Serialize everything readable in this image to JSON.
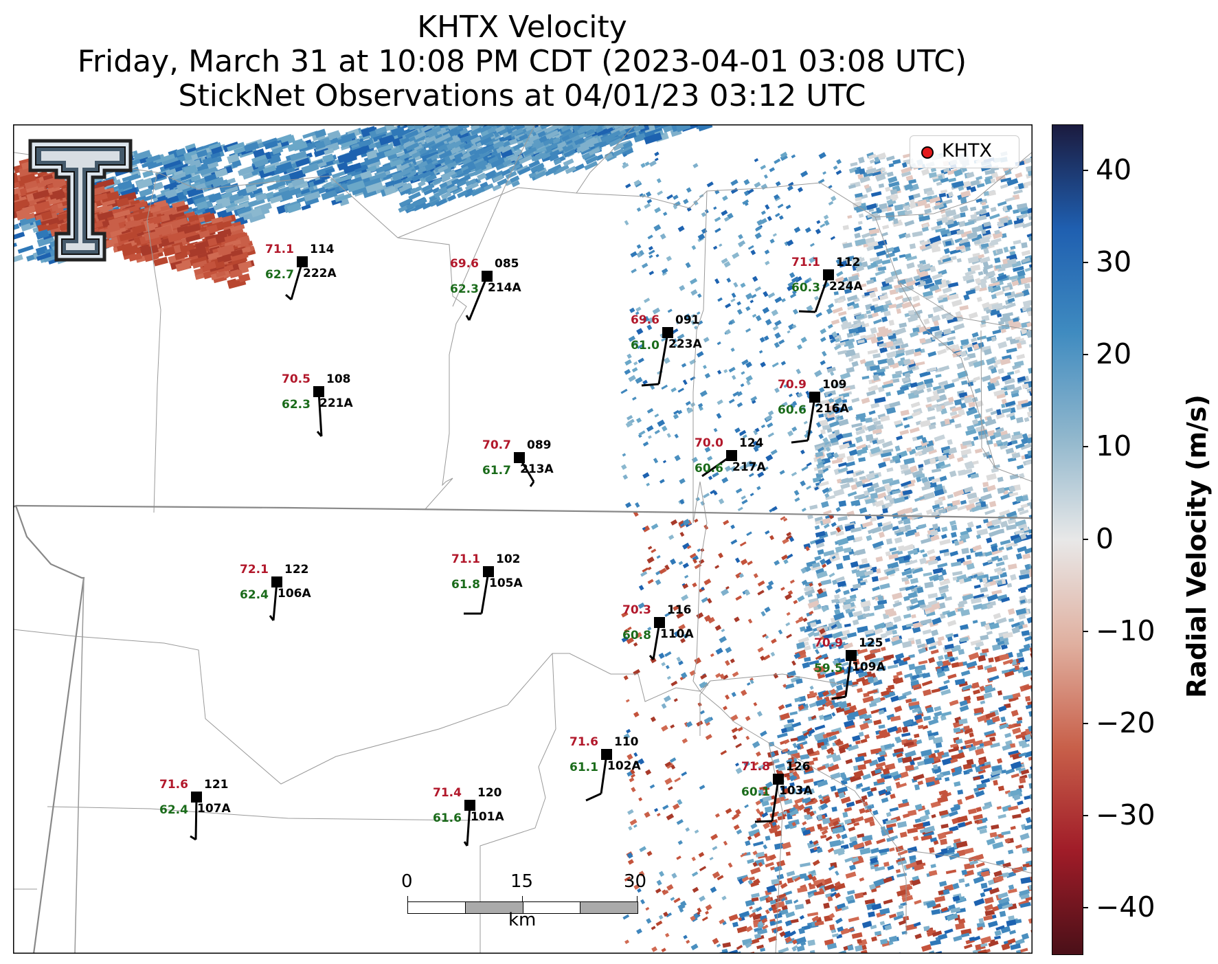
{
  "title": {
    "line1": "KHTX Velocity",
    "line2": "Friday, March 31 at 10:08 PM CDT (2023-04-01 03:08 UTC)",
    "line3": "StickNet Observations at 04/01/23 03:12 UTC"
  },
  "legend": {
    "label": "KHTX",
    "marker_color": "#e41a1c"
  },
  "colorbar": {
    "title": "Radial Velocity (m/s)",
    "ticks": [
      "40",
      "30",
      "20",
      "10",
      "0",
      "−10",
      "−20",
      "−30",
      "−40"
    ],
    "range": [
      -45,
      45
    ],
    "colors": [
      "#1b1b3f",
      "#1f5fb0",
      "#3f8bc0",
      "#8fb6cc",
      "#e8e8e8",
      "#e0b0a0",
      "#c8604a",
      "#a01c28",
      "#4a1018"
    ]
  },
  "scalebar": {
    "ticks": [
      "0",
      "15",
      "30"
    ],
    "unit": "km"
  },
  "logo": {
    "name": "texas-tech-logo"
  },
  "stations": [
    {
      "id": "222A",
      "temp": "71.1",
      "dew": "62.7",
      "num": "114"
    },
    {
      "id": "214A",
      "temp": "69.6",
      "dew": "62.3",
      "num": "085"
    },
    {
      "id": "223A",
      "temp": "69.6",
      "dew": "61.0",
      "num": "091"
    },
    {
      "id": "224A",
      "temp": "71.1",
      "dew": "60.3",
      "num": "112"
    },
    {
      "id": "221A",
      "temp": "70.5",
      "dew": "62.3",
      "num": "108"
    },
    {
      "id": "216A",
      "temp": "70.9",
      "dew": "60.6",
      "num": "109"
    },
    {
      "id": "213A",
      "temp": "70.7",
      "dew": "61.7",
      "num": "089"
    },
    {
      "id": "217A",
      "temp": "70.0",
      "dew": "60.6",
      "num": "124"
    },
    {
      "id": "106A",
      "temp": "72.1",
      "dew": "62.4",
      "num": "122"
    },
    {
      "id": "105A",
      "temp": "71.1",
      "dew": "61.8",
      "num": "102"
    },
    {
      "id": "110A",
      "temp": "70.3",
      "dew": "60.8",
      "num": "116"
    },
    {
      "id": "109A",
      "temp": "70.9",
      "dew": "59.5",
      "num": "125"
    },
    {
      "id": "102A",
      "temp": "71.6",
      "dew": "61.1",
      "num": "110"
    },
    {
      "id": "103A",
      "temp": "71.8",
      "dew": "60.1",
      "num": "126"
    },
    {
      "id": "107A",
      "temp": "71.6",
      "dew": "62.4",
      "num": "121"
    },
    {
      "id": "101A",
      "temp": "71.4",
      "dew": "61.6",
      "num": "120"
    }
  ]
}
